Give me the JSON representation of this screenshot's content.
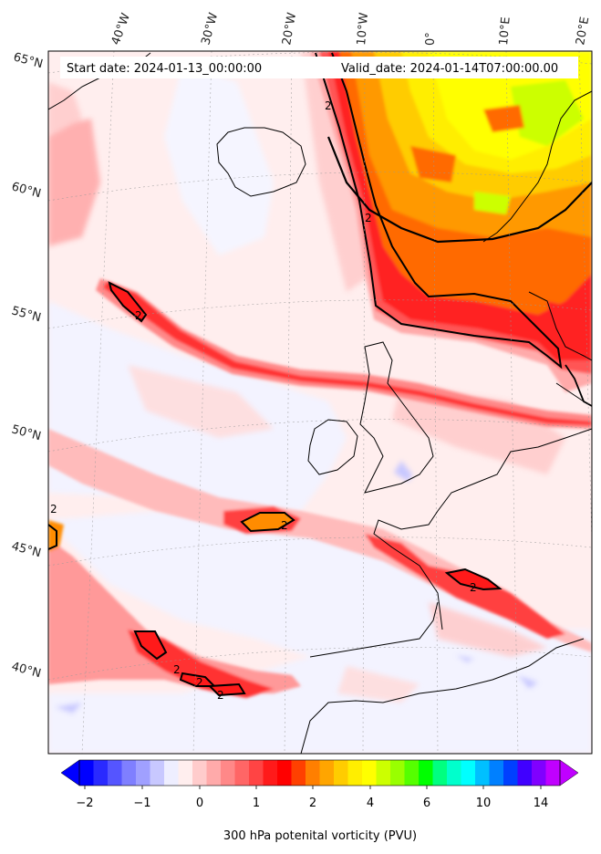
{
  "header": {
    "start_label": "Start date: 2024-01-13_00:00:00",
    "valid_label": "Valid_date: 2024-01-14T07:00:00.00"
  },
  "map": {
    "projection": "lambert-conformal",
    "lon_labels": [
      "40°W",
      "30°W",
      "20°W",
      "10°W",
      "0°",
      "10°E",
      "20°E"
    ],
    "lat_labels": [
      "65°N",
      "60°N",
      "55°N",
      "50°N",
      "45°N",
      "40°N"
    ],
    "contour_level_label": "2",
    "field": "300 hPa potential vorticity"
  },
  "colorbar": {
    "title": "300 hPa potenital vorticity (PVU)",
    "tick_labels": [
      "−2",
      "−1",
      "0",
      "1",
      "2",
      "4",
      "6",
      "10",
      "14"
    ],
    "colors": [
      "#0000ff",
      "#2a2aff",
      "#5555ff",
      "#7f7fff",
      "#a0a0ff",
      "#c8c8ff",
      "#eeeeff",
      "#ffeeee",
      "#ffcccc",
      "#ffaaaa",
      "#ff8888",
      "#ff6666",
      "#ff4444",
      "#ff1a1a",
      "#ff0000",
      "#ff4000",
      "#ff7f00",
      "#ffa500",
      "#ffcc00",
      "#ffee00",
      "#ffff00",
      "#ccff00",
      "#99ff00",
      "#55ff00",
      "#00ff00",
      "#00ff80",
      "#00ffcc",
      "#00ffff",
      "#00c0ff",
      "#0080ff",
      "#0040ff",
      "#4000ff",
      "#8000ff",
      "#c000ff"
    ],
    "under_color": "#0000ff",
    "over_color": "#c000ff"
  }
}
